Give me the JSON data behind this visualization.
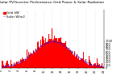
{
  "title": "Solar PV/Inverter Performance Grid Power & Solar Radiation",
  "legend1": "Grid kW",
  "legend2": "Solar W/m2",
  "bg_color": "#ffffff",
  "plot_bg": "#ffffff",
  "grid_color": "#aaaaaa",
  "bar_color": "#ff0000",
  "line_color": "#0000ff",
  "n_points": 144,
  "solar_peak": 1000,
  "power_peak": 5.0,
  "title_fontsize": 3.2,
  "tick_fontsize": 2.5,
  "legend_fontsize": 2.8,
  "right_yticks": [
    0,
    100,
    200,
    300,
    400,
    500,
    600,
    700,
    800,
    900,
    1000
  ]
}
